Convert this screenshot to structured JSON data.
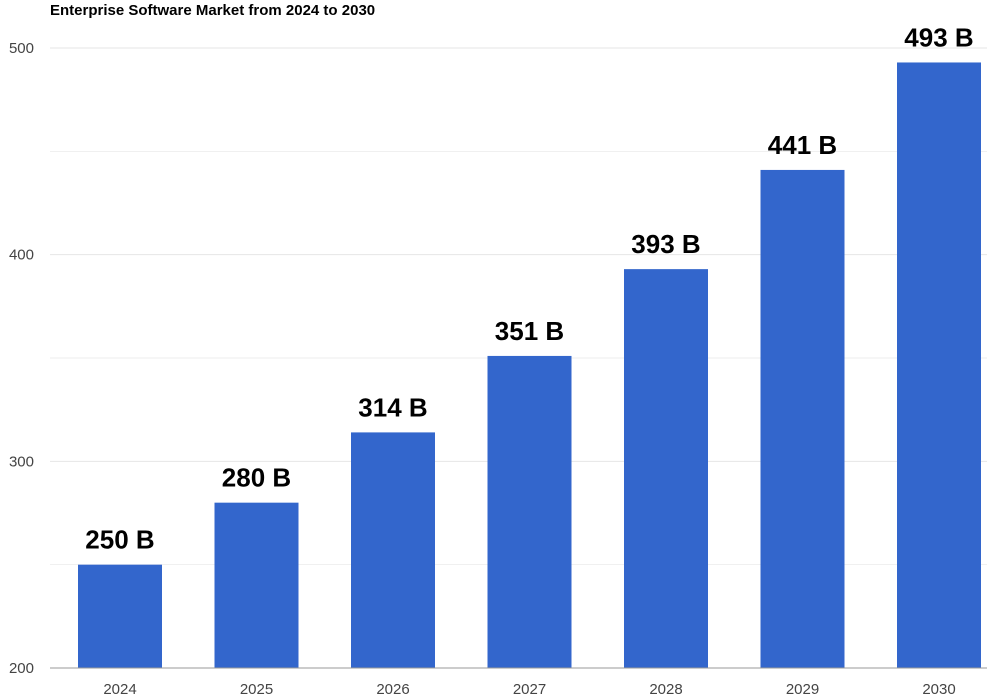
{
  "chart_data": {
    "type": "bar",
    "title": "Enterprise Software Market from 2024 to 2030",
    "xlabel": "",
    "ylabel": "",
    "categories": [
      "2024",
      "2025",
      "2026",
      "2027",
      "2028",
      "2029",
      "2030"
    ],
    "values": [
      250,
      280,
      314,
      351,
      393,
      441,
      493
    ],
    "data_labels": [
      "250 B",
      "280 B",
      "314 B",
      "351 B",
      "393 B",
      "441 B",
      "493 B"
    ],
    "ylim": [
      200,
      500
    ],
    "yticks": [
      "200",
      "300",
      "400",
      "500"
    ],
    "grid": true,
    "legend": "none",
    "bar_color": "#3366cc",
    "grid_color": "#e6e6e6",
    "axis_color": "#999999"
  }
}
